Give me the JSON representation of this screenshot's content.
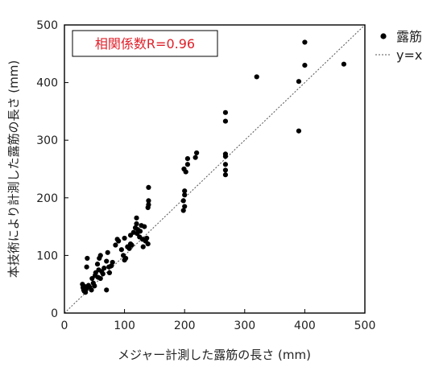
{
  "chart_data": {
    "type": "scatter",
    "xlabel": "メジャー計測した露筋の長さ (mm)",
    "ylabel": "本技術により計測した露筋の長さ (mm)",
    "xlim": [
      0,
      500
    ],
    "ylim": [
      0,
      500
    ],
    "x_ticks": [
      "0",
      "100",
      "200",
      "300",
      "400",
      "500"
    ],
    "y_ticks": [
      "0",
      "100",
      "200",
      "300",
      "400",
      "500"
    ],
    "grid": false,
    "legend_position": "top-right",
    "annotation": "相関係数R=0.96",
    "annotation_color": "#e0202a",
    "series": [
      {
        "name": "露筋",
        "marker": "filled-circle",
        "color": "#000000",
        "points": [
          [
            30,
            50
          ],
          [
            31,
            44
          ],
          [
            32,
            40
          ],
          [
            33,
            38
          ],
          [
            34,
            46
          ],
          [
            35,
            36
          ],
          [
            36,
            42
          ],
          [
            37,
            80
          ],
          [
            38,
            95
          ],
          [
            40,
            48
          ],
          [
            42,
            45
          ],
          [
            45,
            40
          ],
          [
            46,
            60
          ],
          [
            48,
            52
          ],
          [
            50,
            47
          ],
          [
            51,
            65
          ],
          [
            52,
            70
          ],
          [
            55,
            85
          ],
          [
            56,
            62
          ],
          [
            57,
            75
          ],
          [
            58,
            95
          ],
          [
            60,
            60
          ],
          [
            60,
            100
          ],
          [
            62,
            72
          ],
          [
            64,
            68
          ],
          [
            66,
            78
          ],
          [
            70,
            90
          ],
          [
            70,
            40
          ],
          [
            72,
            105
          ],
          [
            74,
            80
          ],
          [
            75,
            70
          ],
          [
            78,
            82
          ],
          [
            80,
            88
          ],
          [
            85,
            118
          ],
          [
            88,
            128
          ],
          [
            90,
            125
          ],
          [
            95,
            110
          ],
          [
            98,
            100
          ],
          [
            100,
            92
          ],
          [
            100,
            130
          ],
          [
            102,
            95
          ],
          [
            105,
            115
          ],
          [
            108,
            112
          ],
          [
            110,
            120
          ],
          [
            110,
            135
          ],
          [
            112,
            118
          ],
          [
            115,
            140
          ],
          [
            118,
            148
          ],
          [
            120,
            155
          ],
          [
            120,
            165
          ],
          [
            121,
            138
          ],
          [
            122,
            145
          ],
          [
            125,
            132
          ],
          [
            126,
            142
          ],
          [
            128,
            152
          ],
          [
            130,
            128
          ],
          [
            131,
            115
          ],
          [
            133,
            150
          ],
          [
            135,
            125
          ],
          [
            137,
            130
          ],
          [
            139,
            120
          ],
          [
            139,
            183
          ],
          [
            140,
            195
          ],
          [
            140,
            218
          ],
          [
            140,
            188
          ],
          [
            198,
            178
          ],
          [
            198,
            195
          ],
          [
            199,
            250
          ],
          [
            200,
            212
          ],
          [
            200,
            205
          ],
          [
            200,
            185
          ],
          [
            202,
            245
          ],
          [
            205,
            258
          ],
          [
            205,
            268
          ],
          [
            218,
            270
          ],
          [
            220,
            278
          ],
          [
            268,
            348
          ],
          [
            268,
            333
          ],
          [
            268,
            276
          ],
          [
            268,
            272
          ],
          [
            268,
            258
          ],
          [
            268,
            248
          ],
          [
            268,
            240
          ],
          [
            320,
            410
          ],
          [
            390,
            402
          ],
          [
            390,
            316
          ],
          [
            400,
            470
          ],
          [
            400,
            430
          ],
          [
            465,
            432
          ]
        ]
      },
      {
        "name": "y=x",
        "line_style": "dotted",
        "color": "#555555",
        "points": [
          [
            0,
            0
          ],
          [
            500,
            500
          ]
        ]
      }
    ]
  }
}
